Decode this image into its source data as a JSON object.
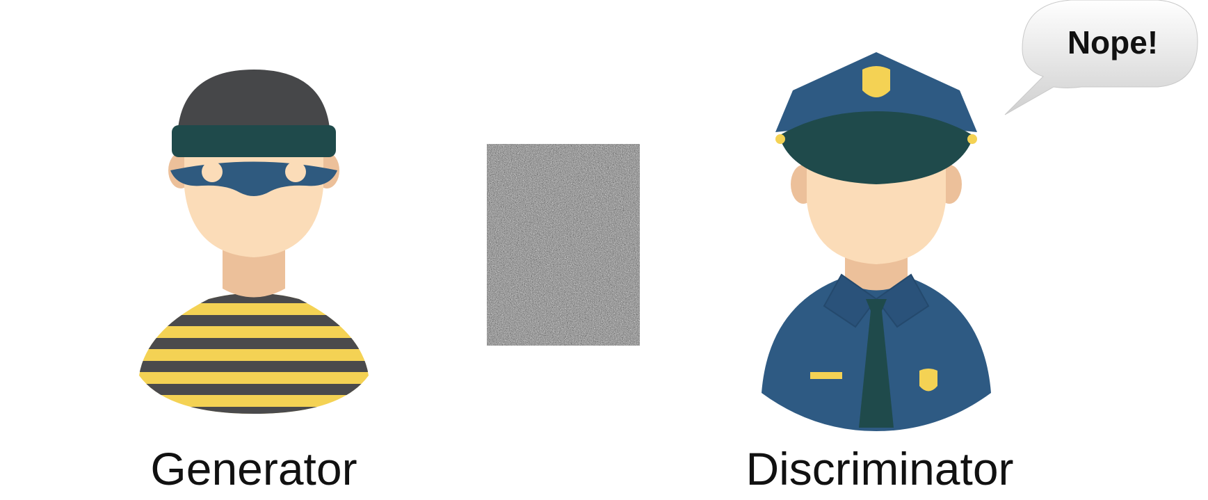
{
  "generator": {
    "label": "Generator",
    "icon": "burglar-icon",
    "colors": {
      "beanie": "#464749",
      "band": "#1f4a4b",
      "mask": "#2f5a7f",
      "skin": "#fbdcb8",
      "neck": "#ecc09a",
      "stripe_yellow": "#f4d254",
      "stripe_dark": "#4a4a4c"
    }
  },
  "noise_image": {
    "icon": "noise-image"
  },
  "discriminator": {
    "label": "Discriminator",
    "icon": "police-officer-icon",
    "speech": "Nope!",
    "colors": {
      "uniform": "#2e5a83",
      "visor": "#1f4a4b",
      "badge": "#f4d254",
      "skin": "#fbdcb8",
      "neck": "#ecc09a",
      "tie": "#1f4a4b"
    }
  }
}
